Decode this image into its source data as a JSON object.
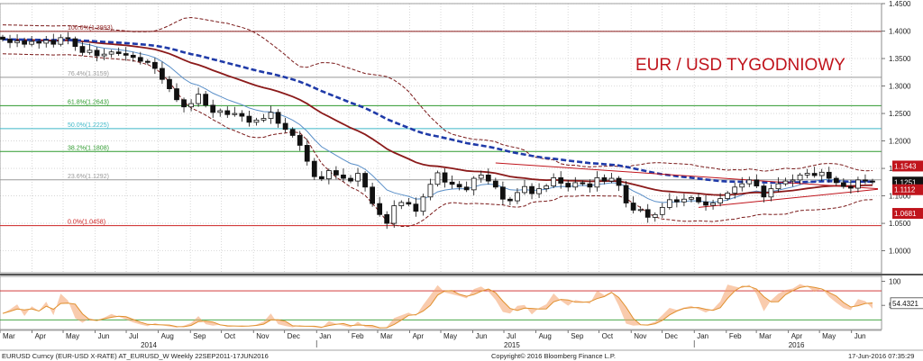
{
  "chart_data": {
    "type": "candlestick",
    "title": "EUR / USD TYGODNIOWY",
    "main_yaxis": {
      "range": [
        0.96,
        1.45
      ],
      "ticks": [
        "1.4500",
        "1.4000",
        "1.3500",
        "1.3000",
        "1.2500",
        "1.2000",
        "1.1500",
        "1.1000",
        "1.0500",
        "1.0000"
      ],
      "tick_values": [
        1.45,
        1.4,
        1.35,
        1.3,
        1.25,
        1.2,
        1.15,
        1.1,
        1.05,
        1.0
      ]
    },
    "osc_yaxis": {
      "range": [
        0,
        110
      ],
      "ticks": [
        "100",
        "50"
      ],
      "tick_values": [
        100,
        50
      ]
    },
    "x_axis": {
      "range": [
        "2014-03-01",
        "2016-06-30"
      ],
      "months": [
        {
          "label": "Mar",
          "date": "2014-03-01"
        },
        {
          "label": "Apr",
          "date": "2014-04-01"
        },
        {
          "label": "May",
          "date": "2014-05-01"
        },
        {
          "label": "Jun",
          "date": "2014-06-01"
        },
        {
          "label": "Jul",
          "date": "2014-07-01"
        },
        {
          "label": "Aug",
          "date": "2014-08-01"
        },
        {
          "label": "Sep",
          "date": "2014-09-01"
        },
        {
          "label": "Oct",
          "date": "2014-10-01"
        },
        {
          "label": "Nov",
          "date": "2014-11-01"
        },
        {
          "label": "Dec",
          "date": "2014-12-01"
        },
        {
          "label": "Jan",
          "date": "2015-01-01"
        },
        {
          "label": "Feb",
          "date": "2015-02-01"
        },
        {
          "label": "Mar",
          "date": "2015-03-01"
        },
        {
          "label": "Apr",
          "date": "2015-04-01"
        },
        {
          "label": "May",
          "date": "2015-05-01"
        },
        {
          "label": "Jun",
          "date": "2015-06-01"
        },
        {
          "label": "Jul",
          "date": "2015-07-01"
        },
        {
          "label": "Aug",
          "date": "2015-08-01"
        },
        {
          "label": "Sep",
          "date": "2015-09-01"
        },
        {
          "label": "Oct",
          "date": "2015-10-01"
        },
        {
          "label": "Nov",
          "date": "2015-11-01"
        },
        {
          "label": "Dec",
          "date": "2015-12-01"
        },
        {
          "label": "Jan",
          "date": "2016-01-01"
        },
        {
          "label": "Feb",
          "date": "2016-02-01"
        },
        {
          "label": "Mar",
          "date": "2016-03-01"
        },
        {
          "label": "Apr",
          "date": "2016-04-01"
        },
        {
          "label": "May",
          "date": "2016-05-01"
        },
        {
          "label": "Jun",
          "date": "2016-06-01"
        }
      ],
      "years": [
        {
          "label": "2014",
          "date": "2014-07-15"
        },
        {
          "label": "2015",
          "date": "2015-07-01"
        },
        {
          "label": "2016",
          "date": "2016-04-01"
        }
      ]
    },
    "fib_levels": [
      {
        "label": "100.0%(1.3993)",
        "value": 1.3993,
        "color": "#8b1a1a"
      },
      {
        "label": "76.4%(1.3159)",
        "value": 1.3159,
        "color": "#999999"
      },
      {
        "label": "61.8%(1.2643)",
        "value": 1.2643,
        "color": "#2e9a2e"
      },
      {
        "label": "50.0%(1.2225)",
        "value": 1.2225,
        "color": "#3fb8c8"
      },
      {
        "label": "38.2%(1.1808)",
        "value": 1.1808,
        "color": "#2e9a2e"
      },
      {
        "label": "23.6%(1.1292)",
        "value": 1.1292,
        "color": "#999999"
      },
      {
        "label": "0.0%(1.0458)",
        "value": 1.0458,
        "color": "#cc2222"
      }
    ],
    "price_tags": [
      {
        "label": "1.1543",
        "value": 1.1543,
        "bg": "#c0141c",
        "fg": "#ffffff"
      },
      {
        "label": "1.1251",
        "value": 1.1251,
        "bg": "#111111",
        "fg": "#ffffff"
      },
      {
        "label": "1.1112",
        "value": 1.1112,
        "bg": "#c0141c",
        "fg": "#ffffff"
      },
      {
        "label": "1.0681",
        "value": 1.0681,
        "bg": "#c0141c",
        "fg": "#ffffff"
      }
    ],
    "osc_tag": {
      "label": "54.4321",
      "value": 54.43
    },
    "osc_levels": [
      {
        "value": 80,
        "color": "#cc2222"
      },
      {
        "value": 20,
        "color": "#2e9a2e"
      }
    ],
    "closes": [
      1.385,
      1.379,
      1.382,
      1.376,
      1.381,
      1.378,
      1.383,
      1.376,
      1.388,
      1.386,
      1.372,
      1.361,
      1.365,
      1.355,
      1.358,
      1.362,
      1.359,
      1.356,
      1.352,
      1.345,
      1.343,
      1.332,
      1.312,
      1.295,
      1.275,
      1.262,
      1.268,
      1.285,
      1.265,
      1.252,
      1.255,
      1.248,
      1.25,
      1.245,
      1.234,
      1.238,
      1.241,
      1.252,
      1.232,
      1.221,
      1.21,
      1.192,
      1.163,
      1.135,
      1.131,
      1.146,
      1.138,
      1.132,
      1.127,
      1.141,
      1.116,
      1.086,
      1.066,
      1.05,
      1.082,
      1.088,
      1.085,
      1.072,
      1.098,
      1.121,
      1.142,
      1.125,
      1.121,
      1.116,
      1.111,
      1.132,
      1.138,
      1.127,
      1.116,
      1.094,
      1.091,
      1.106,
      1.117,
      1.104,
      1.113,
      1.118,
      1.133,
      1.123,
      1.116,
      1.124,
      1.122,
      1.116,
      1.133,
      1.127,
      1.132,
      1.119,
      1.087,
      1.074,
      1.075,
      1.061,
      1.066,
      1.079,
      1.093,
      1.089,
      1.094,
      1.097,
      1.089,
      1.083,
      1.087,
      1.095,
      1.105,
      1.116,
      1.122,
      1.129,
      1.118,
      1.098,
      1.113,
      1.122,
      1.127,
      1.129,
      1.138,
      1.141,
      1.137,
      1.143,
      1.132,
      1.124,
      1.117,
      1.114,
      1.129,
      1.127,
      1.1251
    ],
    "series": [
      {
        "name": "EMA 10",
        "values": "derived",
        "color": "#5a8fc8"
      },
      {
        "name": "EMA 30",
        "values": "derived",
        "color": "#8b1a1a"
      },
      {
        "name": "MA 55",
        "values": "derived",
        "color": "#1f3aa8"
      },
      {
        "name": "Bollinger",
        "values": "derived",
        "color": "#7a1a1a"
      }
    ],
    "footer": {
      "left": "EURUSD Curncy (EUR-USD X-RATE) AT_EURUSD_W  Weekly 22SEP2011-17JUN2016",
      "center": "Copyright© 2016 Bloomberg Finance L.P.",
      "right": "17-Jun-2016 07:35:29"
    }
  }
}
